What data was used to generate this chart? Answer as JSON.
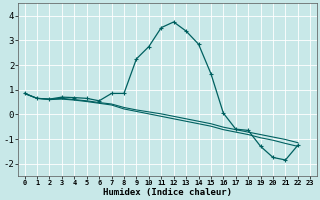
{
  "xlabel": "Humidex (Indice chaleur)",
  "bg_color": "#c8e8e8",
  "line_color": "#006060",
  "grid_color": "#ffffff",
  "xlim": [
    -0.5,
    23.5
  ],
  "ylim": [
    -2.5,
    4.5
  ],
  "yticks": [
    -2,
    -1,
    0,
    1,
    2,
    3,
    4
  ],
  "xtick_labels": [
    "0",
    "1",
    "2",
    "3",
    "4",
    "5",
    "6",
    "7",
    "8",
    "9",
    "10",
    "11",
    "12",
    "13",
    "14",
    "15",
    "16",
    "17",
    "18",
    "19",
    "20",
    "21",
    "22",
    "23"
  ],
  "series": [
    {
      "x": [
        0,
        1,
        2,
        3,
        4,
        5,
        6,
        7,
        8,
        9,
        10,
        11,
        12,
        13,
        14,
        15,
        16,
        17,
        18,
        19,
        20,
        21,
        22
      ],
      "y": [
        0.85,
        0.65,
        0.62,
        0.7,
        0.68,
        0.65,
        0.55,
        0.85,
        0.85,
        2.25,
        2.75,
        3.52,
        3.75,
        3.38,
        2.85,
        1.65,
        0.05,
        -0.6,
        -0.65,
        -1.3,
        -1.75,
        -1.85,
        -1.25
      ],
      "marker": true
    },
    {
      "x": [
        0,
        1,
        2,
        3,
        4,
        5,
        6,
        7,
        8,
        9,
        10,
        11,
        12,
        13,
        14,
        15,
        16,
        17,
        18,
        19,
        20,
        21,
        22
      ],
      "y": [
        0.85,
        0.65,
        0.62,
        0.65,
        0.6,
        0.55,
        0.48,
        0.42,
        0.28,
        0.18,
        0.1,
        0.02,
        -0.08,
        -0.18,
        -0.28,
        -0.38,
        -0.52,
        -0.62,
        -0.72,
        -0.82,
        -0.92,
        -1.02,
        -1.15
      ],
      "marker": false
    },
    {
      "x": [
        0,
        1,
        2,
        3,
        4,
        5,
        6,
        7,
        8,
        9,
        10,
        11,
        12,
        13,
        14,
        15,
        16,
        17,
        18,
        19,
        20,
        21,
        22
      ],
      "y": [
        0.85,
        0.65,
        0.6,
        0.62,
        0.58,
        0.52,
        0.45,
        0.38,
        0.22,
        0.12,
        0.02,
        -0.08,
        -0.18,
        -0.28,
        -0.38,
        -0.48,
        -0.62,
        -0.72,
        -0.82,
        -0.95,
        -1.05,
        -1.18,
        -1.3
      ],
      "marker": false
    }
  ]
}
